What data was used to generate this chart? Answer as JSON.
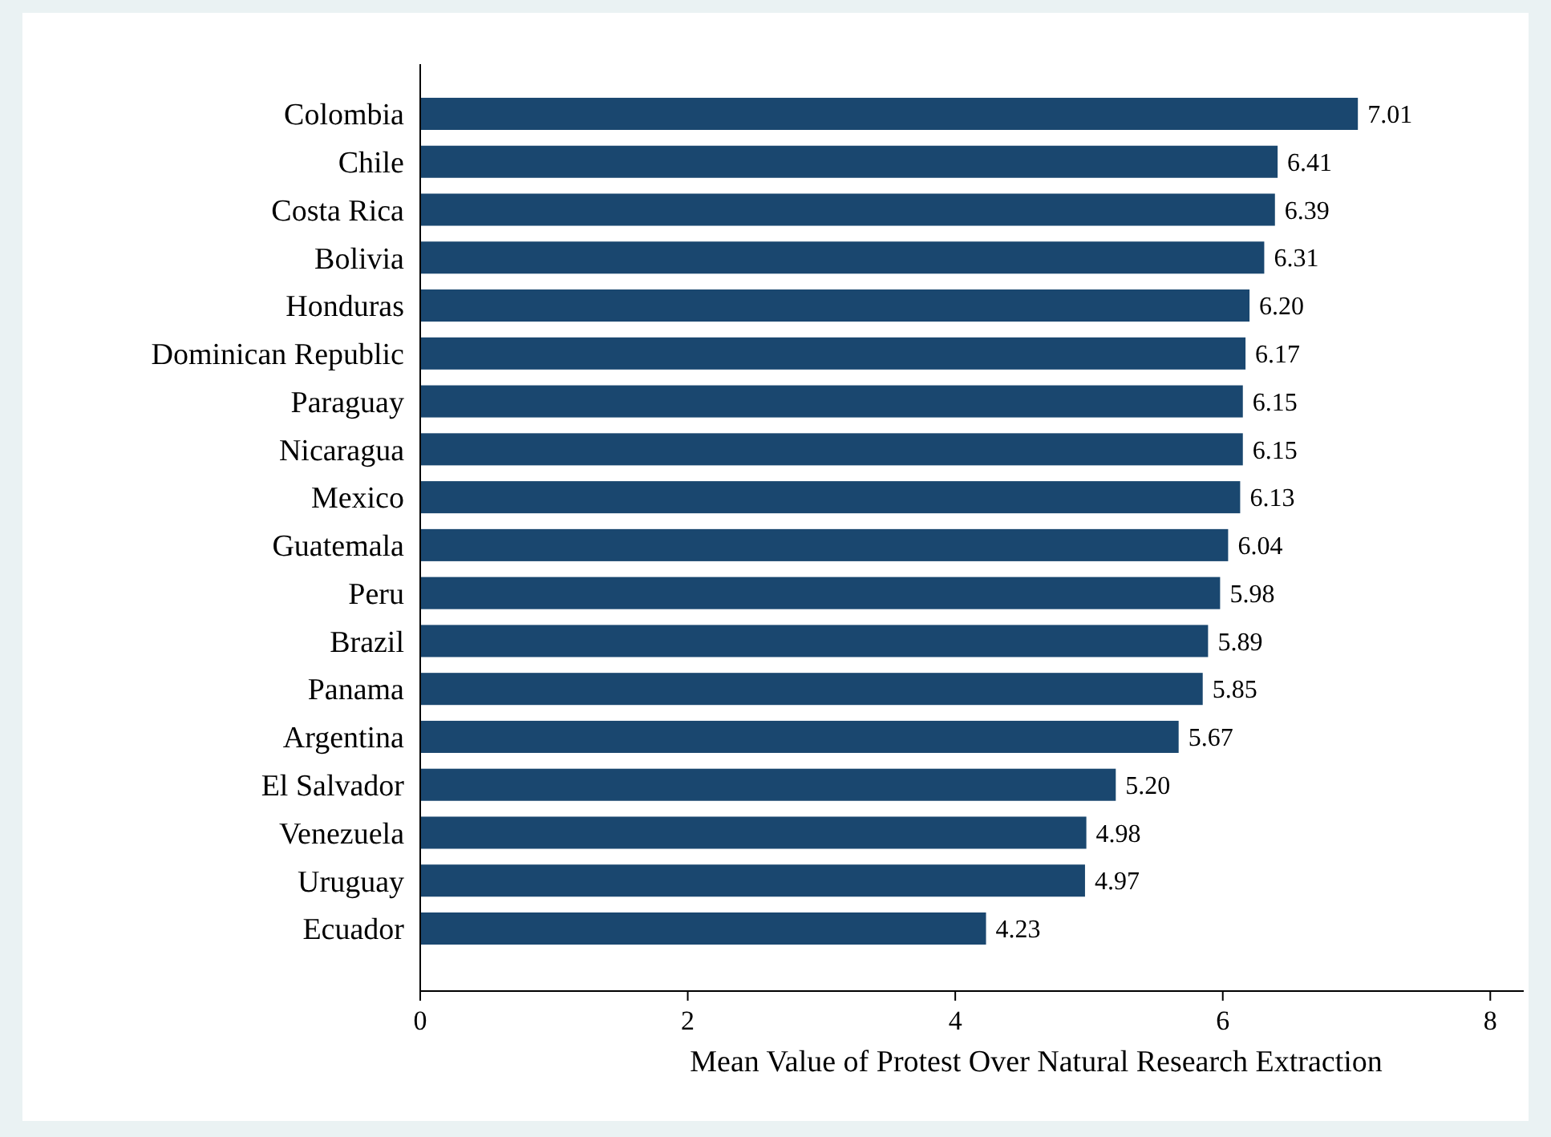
{
  "chart_data": {
    "type": "bar",
    "orientation": "horizontal",
    "xlabel": "Mean Value of Protest Over Natural Research Extraction",
    "categories": [
      "Colombia",
      "Chile",
      "Costa Rica",
      "Bolivia",
      "Honduras",
      "Dominican Republic",
      "Paraguay",
      "Nicaragua",
      "Mexico",
      "Guatemala",
      "Peru",
      "Brazil",
      "Panama",
      "Argentina",
      "El Salvador",
      "Venezuela",
      "Uruguay",
      "Ecuador"
    ],
    "values": [
      7.01,
      6.41,
      6.39,
      6.31,
      6.2,
      6.17,
      6.15,
      6.15,
      6.13,
      6.04,
      5.98,
      5.89,
      5.85,
      5.67,
      5.2,
      4.98,
      4.97,
      4.23
    ],
    "value_labels": [
      "7.01",
      "6.41",
      "6.39",
      "6.31",
      "6.20",
      "6.17",
      "6.15",
      "6.15",
      "6.13",
      "6.04",
      "5.98",
      "5.89",
      "5.85",
      "5.67",
      "5.20",
      "4.98",
      "4.97",
      "4.23"
    ],
    "color": "#1a476f",
    "xlim": [
      0,
      8.25
    ],
    "xticks": [
      0,
      2,
      4,
      6,
      8
    ],
    "grid": false
  }
}
